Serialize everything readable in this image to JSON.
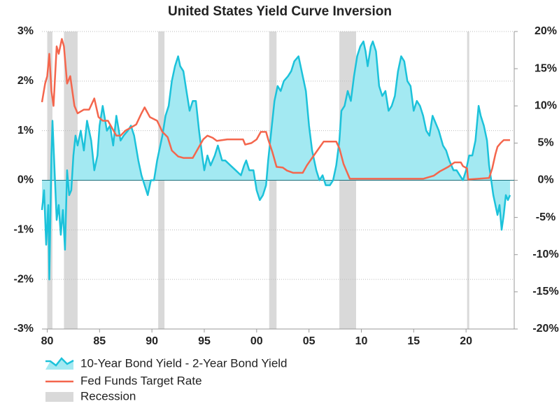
{
  "chart_data": {
    "type": "line",
    "title": "United States Yield Curve Inversion",
    "xlim": [
      1979.5,
      2024.6
    ],
    "xticks": [
      {
        "value": 1980,
        "label": "80"
      },
      {
        "value": 1985,
        "label": "85"
      },
      {
        "value": 1990,
        "label": "90"
      },
      {
        "value": 1995,
        "label": "95"
      },
      {
        "value": 2000,
        "label": "00"
      },
      {
        "value": 2005,
        "label": "05"
      },
      {
        "value": 2010,
        "label": "10"
      },
      {
        "value": 2015,
        "label": "15"
      },
      {
        "value": 2020,
        "label": "20"
      }
    ],
    "ylim": [
      -3,
      3
    ],
    "yticks": [
      {
        "value": -3,
        "label": "-3%"
      },
      {
        "value": -2,
        "label": "-2%"
      },
      {
        "value": -1,
        "label": "-1%"
      },
      {
        "value": 0,
        "label": "0%"
      },
      {
        "value": 1,
        "label": "1%"
      },
      {
        "value": 2,
        "label": "2%"
      },
      {
        "value": 3,
        "label": "3%"
      }
    ],
    "y2lim": [
      -20,
      20
    ],
    "y2ticks": [
      {
        "value": -20,
        "label": "-20%"
      },
      {
        "value": -15,
        "label": "-15%"
      },
      {
        "value": -10,
        "label": "-10%"
      },
      {
        "value": -5,
        "label": "-5%"
      },
      {
        "value": 0,
        "label": "0%"
      },
      {
        "value": 5,
        "label": "5%"
      },
      {
        "value": 10,
        "label": "10%"
      },
      {
        "value": 15,
        "label": "15%"
      },
      {
        "value": 20,
        "label": "20%"
      }
    ],
    "grid": true,
    "legend": "bottom-left",
    "recession": {
      "name": "Recession",
      "color": "#d9d9d9",
      "periods": [
        [
          1980.0,
          1980.5
        ],
        [
          1981.6,
          1982.9
        ],
        [
          1990.6,
          1991.2
        ],
        [
          2001.2,
          2001.9
        ],
        [
          2007.9,
          2009.5
        ],
        [
          2020.1,
          2020.3
        ]
      ]
    },
    "series": [
      {
        "name": "10-Year Bond Yield - 2-Year Bond Yield",
        "color": "#1cc2da",
        "fill": "#a3e9f2",
        "axis": "y",
        "x": [
          1979.5,
          1979.7,
          1979.9,
          1980.1,
          1980.2,
          1980.4,
          1980.5,
          1980.7,
          1980.9,
          1981.1,
          1981.3,
          1981.5,
          1981.7,
          1981.9,
          1982.1,
          1982.3,
          1982.5,
          1982.7,
          1982.9,
          1983.2,
          1983.5,
          1983.8,
          1984.2,
          1984.5,
          1984.8,
          1985.0,
          1985.3,
          1985.7,
          1986.0,
          1986.3,
          1986.6,
          1987.0,
          1987.3,
          1987.7,
          1988.0,
          1988.3,
          1988.7,
          1989.0,
          1989.3,
          1989.6,
          1989.9,
          1990.2,
          1990.5,
          1990.8,
          1991.0,
          1991.3,
          1991.6,
          1991.9,
          1992.2,
          1992.5,
          1992.7,
          1993.0,
          1993.3,
          1993.6,
          1993.9,
          1994.2,
          1994.5,
          1994.8,
          1995.0,
          1995.3,
          1995.6,
          1996.0,
          1996.3,
          1996.7,
          1997.0,
          1997.5,
          1998.0,
          1998.5,
          1998.8,
          1999.0,
          1999.3,
          1999.7,
          2000.0,
          2000.3,
          2000.6,
          2000.9,
          2001.1,
          2001.4,
          2001.7,
          2002.0,
          2002.3,
          2002.6,
          2003.0,
          2003.3,
          2003.6,
          2004.0,
          2004.3,
          2004.7,
          2005.0,
          2005.3,
          2005.7,
          2006.0,
          2006.3,
          2006.6,
          2007.0,
          2007.3,
          2007.6,
          2007.9,
          2008.1,
          2008.4,
          2008.7,
          2009.0,
          2009.3,
          2009.6,
          2009.9,
          2010.2,
          2010.4,
          2010.6,
          2010.9,
          2011.1,
          2011.4,
          2011.7,
          2012.0,
          2012.3,
          2012.6,
          2012.9,
          2013.2,
          2013.5,
          2013.8,
          2014.1,
          2014.4,
          2014.7,
          2015.0,
          2015.3,
          2015.6,
          2015.9,
          2016.2,
          2016.5,
          2016.8,
          2017.0,
          2017.4,
          2017.8,
          2018.1,
          2018.4,
          2018.8,
          2019.1,
          2019.4,
          2019.7,
          2020.0,
          2020.3,
          2020.6,
          2020.9,
          2021.2,
          2021.4,
          2021.7,
          2022.0,
          2022.2,
          2022.4,
          2022.6,
          2022.8,
          2023.0,
          2023.2,
          2023.4,
          2023.6,
          2023.8,
          2024.0,
          2024.2
        ],
        "values": [
          -0.6,
          -0.2,
          -1.3,
          -0.5,
          -2.0,
          0.5,
          1.2,
          0.2,
          -0.8,
          -0.5,
          -1.1,
          -0.6,
          -1.4,
          0.2,
          -0.3,
          -0.2,
          0.5,
          0.9,
          0.7,
          1.0,
          0.6,
          1.2,
          0.8,
          0.2,
          0.5,
          1.1,
          1.5,
          1.0,
          1.1,
          0.7,
          1.3,
          0.8,
          0.9,
          1.0,
          1.1,
          0.9,
          0.4,
          0.1,
          -0.1,
          -0.3,
          0.0,
          0.0,
          0.4,
          0.7,
          0.9,
          1.3,
          1.5,
          2.0,
          2.3,
          2.5,
          2.3,
          2.2,
          1.8,
          1.4,
          1.6,
          1.6,
          1.0,
          0.5,
          0.2,
          0.5,
          0.3,
          0.5,
          0.7,
          0.4,
          0.4,
          0.3,
          0.2,
          0.1,
          0.3,
          0.4,
          0.2,
          0.2,
          -0.2,
          -0.4,
          -0.3,
          -0.1,
          0.4,
          1.0,
          1.6,
          1.9,
          1.8,
          2.0,
          2.1,
          2.2,
          2.4,
          2.5,
          2.2,
          1.8,
          1.1,
          0.6,
          0.2,
          0.0,
          0.1,
          -0.1,
          -0.1,
          0.0,
          0.3,
          0.8,
          1.4,
          1.5,
          1.8,
          1.6,
          2.1,
          2.5,
          2.7,
          2.8,
          2.6,
          2.3,
          2.7,
          2.8,
          2.6,
          1.9,
          1.7,
          1.8,
          1.4,
          1.5,
          1.7,
          2.2,
          2.5,
          2.4,
          2.0,
          1.9,
          1.4,
          1.6,
          1.5,
          1.3,
          1.0,
          0.9,
          1.3,
          1.2,
          1.0,
          0.7,
          0.6,
          0.4,
          0.2,
          0.2,
          0.1,
          0.0,
          0.2,
          0.5,
          0.5,
          0.8,
          1.5,
          1.3,
          1.1,
          0.8,
          0.3,
          0.0,
          -0.3,
          -0.5,
          -0.7,
          -0.5,
          -1.0,
          -0.7,
          -0.3,
          -0.4,
          -0.3
        ]
      },
      {
        "name": "Fed Funds Target Rate",
        "color": "#f4664d",
        "axis": "y2",
        "x": [
          1979.5,
          1979.8,
          1980.0,
          1980.2,
          1980.4,
          1980.6,
          1980.9,
          1981.1,
          1981.4,
          1981.6,
          1981.9,
          1982.2,
          1982.6,
          1982.9,
          1983.5,
          1984.0,
          1984.5,
          1984.9,
          1985.3,
          1985.8,
          1986.2,
          1986.6,
          1987.0,
          1987.5,
          1987.9,
          1988.5,
          1989.0,
          1989.3,
          1989.8,
          1990.5,
          1991.0,
          1991.5,
          1991.9,
          1992.5,
          1993.0,
          1993.9,
          1994.3,
          1994.9,
          1995.3,
          1995.8,
          1996.2,
          1997.2,
          1998.7,
          1998.9,
          1999.5,
          2000.0,
          2000.4,
          2000.9,
          2001.1,
          2001.5,
          2001.9,
          2002.5,
          2002.9,
          2003.5,
          2004.4,
          2004.8,
          2005.3,
          2005.8,
          2006.4,
          2007.6,
          2007.9,
          2008.3,
          2008.9,
          2015.9,
          2016.9,
          2017.5,
          2018.3,
          2018.9,
          2019.5,
          2019.7,
          2020.1,
          2020.2,
          2022.2,
          2022.5,
          2022.8,
          2023.0,
          2023.3,
          2023.6,
          2024.2
        ],
        "values": [
          10.5,
          13,
          14,
          17,
          12,
          10,
          18,
          17,
          19,
          18,
          13,
          14,
          10,
          9,
          9.5,
          9.5,
          11,
          8.5,
          8,
          8,
          7,
          6,
          6,
          6.7,
          7,
          7.5,
          9,
          9.8,
          8.5,
          8,
          6.5,
          5.8,
          4,
          3.2,
          3,
          3,
          4,
          5.5,
          6,
          5.7,
          5.3,
          5.5,
          5.5,
          4.8,
          5,
          5.5,
          6.5,
          6.5,
          5.5,
          3.8,
          1.8,
          1.7,
          1.3,
          1,
          1,
          2,
          3,
          4,
          5.2,
          5.2,
          4.3,
          2.2,
          0.2,
          0.2,
          0.6,
          1.2,
          1.8,
          2.4,
          2.4,
          1.9,
          1.6,
          0.1,
          0.3,
          1.6,
          3.5,
          4.5,
          5.0,
          5.4,
          5.4
        ]
      }
    ]
  }
}
